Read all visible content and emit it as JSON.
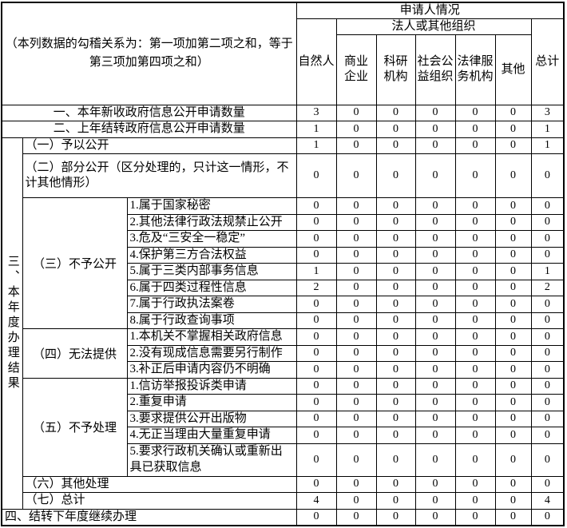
{
  "table": {
    "corner_note": "（本列数据的勾稽关系为：第一项加第二项之和，等于第三项加第四项之和）",
    "header": {
      "applicant_group": "申请人情况",
      "legal_group": "法人或其他组织",
      "col_natural": "自然人",
      "col_total": "总计",
      "legal_cols": [
        "商业\n企业",
        "科研\n机构",
        "社会公\n益组织",
        "法律服\n务机构",
        "其他"
      ]
    },
    "vertical": {
      "label": "三、本年度办理结果",
      "rowspan": 20
    },
    "rows": [
      {
        "span": "full",
        "align": "center",
        "label": "一、本年新收政府信息公开申请数量",
        "values": [
          "3",
          "0",
          "0",
          "0",
          "0",
          "0",
          "3"
        ]
      },
      {
        "span": "full",
        "align": "center",
        "label": "二、上年结转政府信息公开申请数量",
        "values": [
          "1",
          "0",
          "0",
          "0",
          "0",
          "0",
          "1"
        ]
      },
      {
        "span": "sub",
        "vertical": true,
        "align": "left",
        "label": "（一）予以公开",
        "values": [
          "1",
          "0",
          "0",
          "0",
          "0",
          "0",
          "1"
        ]
      },
      {
        "span": "sub",
        "align": "left",
        "label": "（二）部分公开（区分处理的，只计这一情形，不计其他情形）",
        "values": [
          "0",
          "0",
          "0",
          "0",
          "0",
          "0",
          "0"
        ]
      },
      {
        "span": "item",
        "section": {
          "label": "（三）不予公开",
          "rowspan": 8
        },
        "label": "1.属于国家秘密",
        "values": [
          "0",
          "0",
          "0",
          "0",
          "0",
          "0",
          "0"
        ]
      },
      {
        "span": "item",
        "label": "2.其他法律行政法规禁止公开",
        "values": [
          "0",
          "0",
          "0",
          "0",
          "0",
          "0",
          "0"
        ]
      },
      {
        "span": "item",
        "label": "3.危及“三安全一稳定”",
        "values": [
          "0",
          "0",
          "0",
          "0",
          "0",
          "0",
          "0"
        ]
      },
      {
        "span": "item",
        "label": "4.保护第三方合法权益",
        "values": [
          "0",
          "0",
          "0",
          "0",
          "0",
          "0",
          "0"
        ]
      },
      {
        "span": "item",
        "label": "5.属于三类内部事务信息",
        "values": [
          "1",
          "0",
          "0",
          "0",
          "0",
          "0",
          "1"
        ]
      },
      {
        "span": "item",
        "label": "6.属于四类过程性信息",
        "values": [
          "2",
          "0",
          "0",
          "0",
          "0",
          "0",
          "2"
        ]
      },
      {
        "span": "item",
        "label": "7.属于行政执法案卷",
        "values": [
          "0",
          "0",
          "0",
          "0",
          "0",
          "0",
          "0"
        ]
      },
      {
        "span": "item",
        "label": "8.属于行政查询事项",
        "values": [
          "0",
          "0",
          "0",
          "0",
          "0",
          "0",
          "0"
        ]
      },
      {
        "span": "item",
        "section": {
          "label": "（四）无法提供",
          "rowspan": 3
        },
        "label": "1.本机关不掌握相关政府信息",
        "values": [
          "0",
          "0",
          "0",
          "0",
          "0",
          "0",
          "0"
        ]
      },
      {
        "span": "item",
        "label": "2.没有现成信息需要另行制作",
        "values": [
          "0",
          "0",
          "0",
          "0",
          "0",
          "0",
          "0"
        ]
      },
      {
        "span": "item",
        "label": "3.补正后申请内容仍不明确",
        "values": [
          "0",
          "0",
          "0",
          "0",
          "0",
          "0",
          "0"
        ]
      },
      {
        "span": "item",
        "section": {
          "label": "（五）不予处理",
          "rowspan": 5
        },
        "label": "1.信访举报投诉类申请",
        "values": [
          "0",
          "0",
          "0",
          "0",
          "0",
          "0",
          "0"
        ]
      },
      {
        "span": "item",
        "label": "2.重复申请",
        "values": [
          "0",
          "0",
          "0",
          "0",
          "0",
          "0",
          "0"
        ]
      },
      {
        "span": "item",
        "label": "3.要求提供公开出版物",
        "values": [
          "0",
          "0",
          "0",
          "0",
          "0",
          "0",
          "0"
        ]
      },
      {
        "span": "item",
        "label": "4.无正当理由大量重复申请",
        "values": [
          "0",
          "0",
          "0",
          "0",
          "0",
          "0",
          "0"
        ]
      },
      {
        "span": "item",
        "label": "5.要求行政机关确认或重新出具已获取信息",
        "values": [
          "0",
          "0",
          "0",
          "0",
          "0",
          "0",
          "0"
        ]
      },
      {
        "span": "sub",
        "align": "left",
        "label": "（六）其他处理",
        "values": [
          "0",
          "0",
          "0",
          "0",
          "0",
          "0",
          "0"
        ]
      },
      {
        "span": "sub",
        "align": "left",
        "label": "（七）总计",
        "values": [
          "4",
          "0",
          "0",
          "0",
          "0",
          "0",
          "4"
        ]
      },
      {
        "span": "full",
        "align": "left",
        "label": "四、结转下年度继续办理",
        "values": [
          "0",
          "0",
          "0",
          "0",
          "0",
          "0",
          "0"
        ]
      }
    ]
  }
}
